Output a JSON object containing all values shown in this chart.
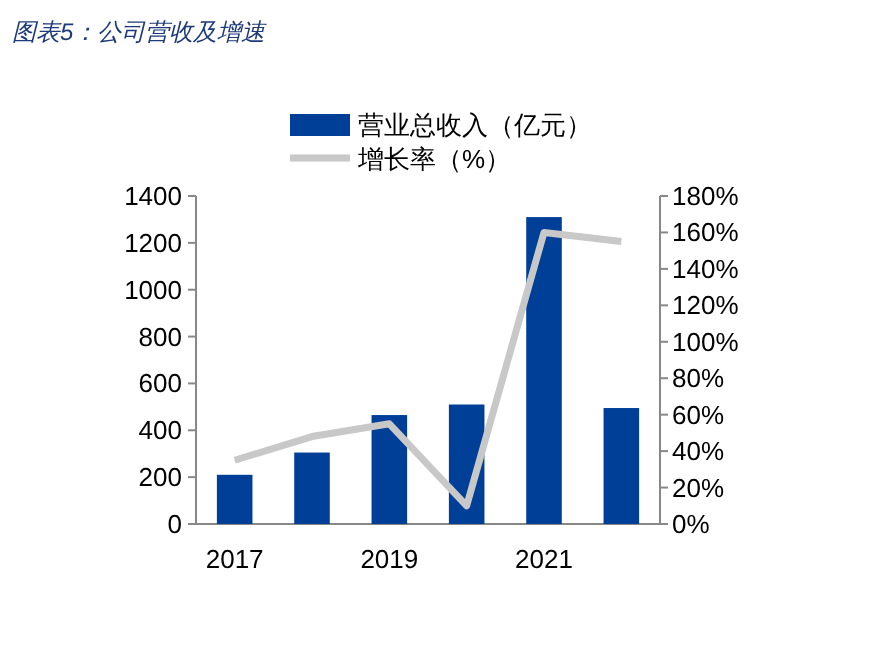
{
  "chart_data": {
    "type": "bar",
    "title": "图表5：公司营收及增速",
    "categories": [
      "2017",
      null,
      "2019",
      null,
      "2021",
      null
    ],
    "series": [
      {
        "name": "营业总收入（亿元）",
        "color": "#003f98",
        "values": [
          210,
          305,
          465,
          510,
          1310,
          495
        ]
      },
      {
        "name": "增长率（%）",
        "type": "line",
        "axis": "y2",
        "color": "#c8c8c8",
        "values": [
          35,
          48,
          55,
          10,
          160,
          155
        ]
      }
    ],
    "ylim": [
      0,
      1400
    ],
    "yticks": [
      0,
      200,
      400,
      600,
      800,
      1000,
      1200,
      1400
    ],
    "y2lim": [
      0,
      180
    ],
    "y2ticks": [
      {
        "value": 0,
        "label": "0%"
      },
      {
        "value": 20,
        "label": "20%"
      },
      {
        "value": 40,
        "label": "40%"
      },
      {
        "value": 60,
        "label": "60%"
      },
      {
        "value": 80,
        "label": "80%"
      },
      {
        "value": 100,
        "label": "100%"
      },
      {
        "value": 120,
        "label": "120%"
      },
      {
        "value": 140,
        "label": "140%"
      },
      {
        "value": 160,
        "label": "160%"
      },
      {
        "value": 180,
        "label": "180%"
      }
    ],
    "legend": "top",
    "grid": false
  }
}
